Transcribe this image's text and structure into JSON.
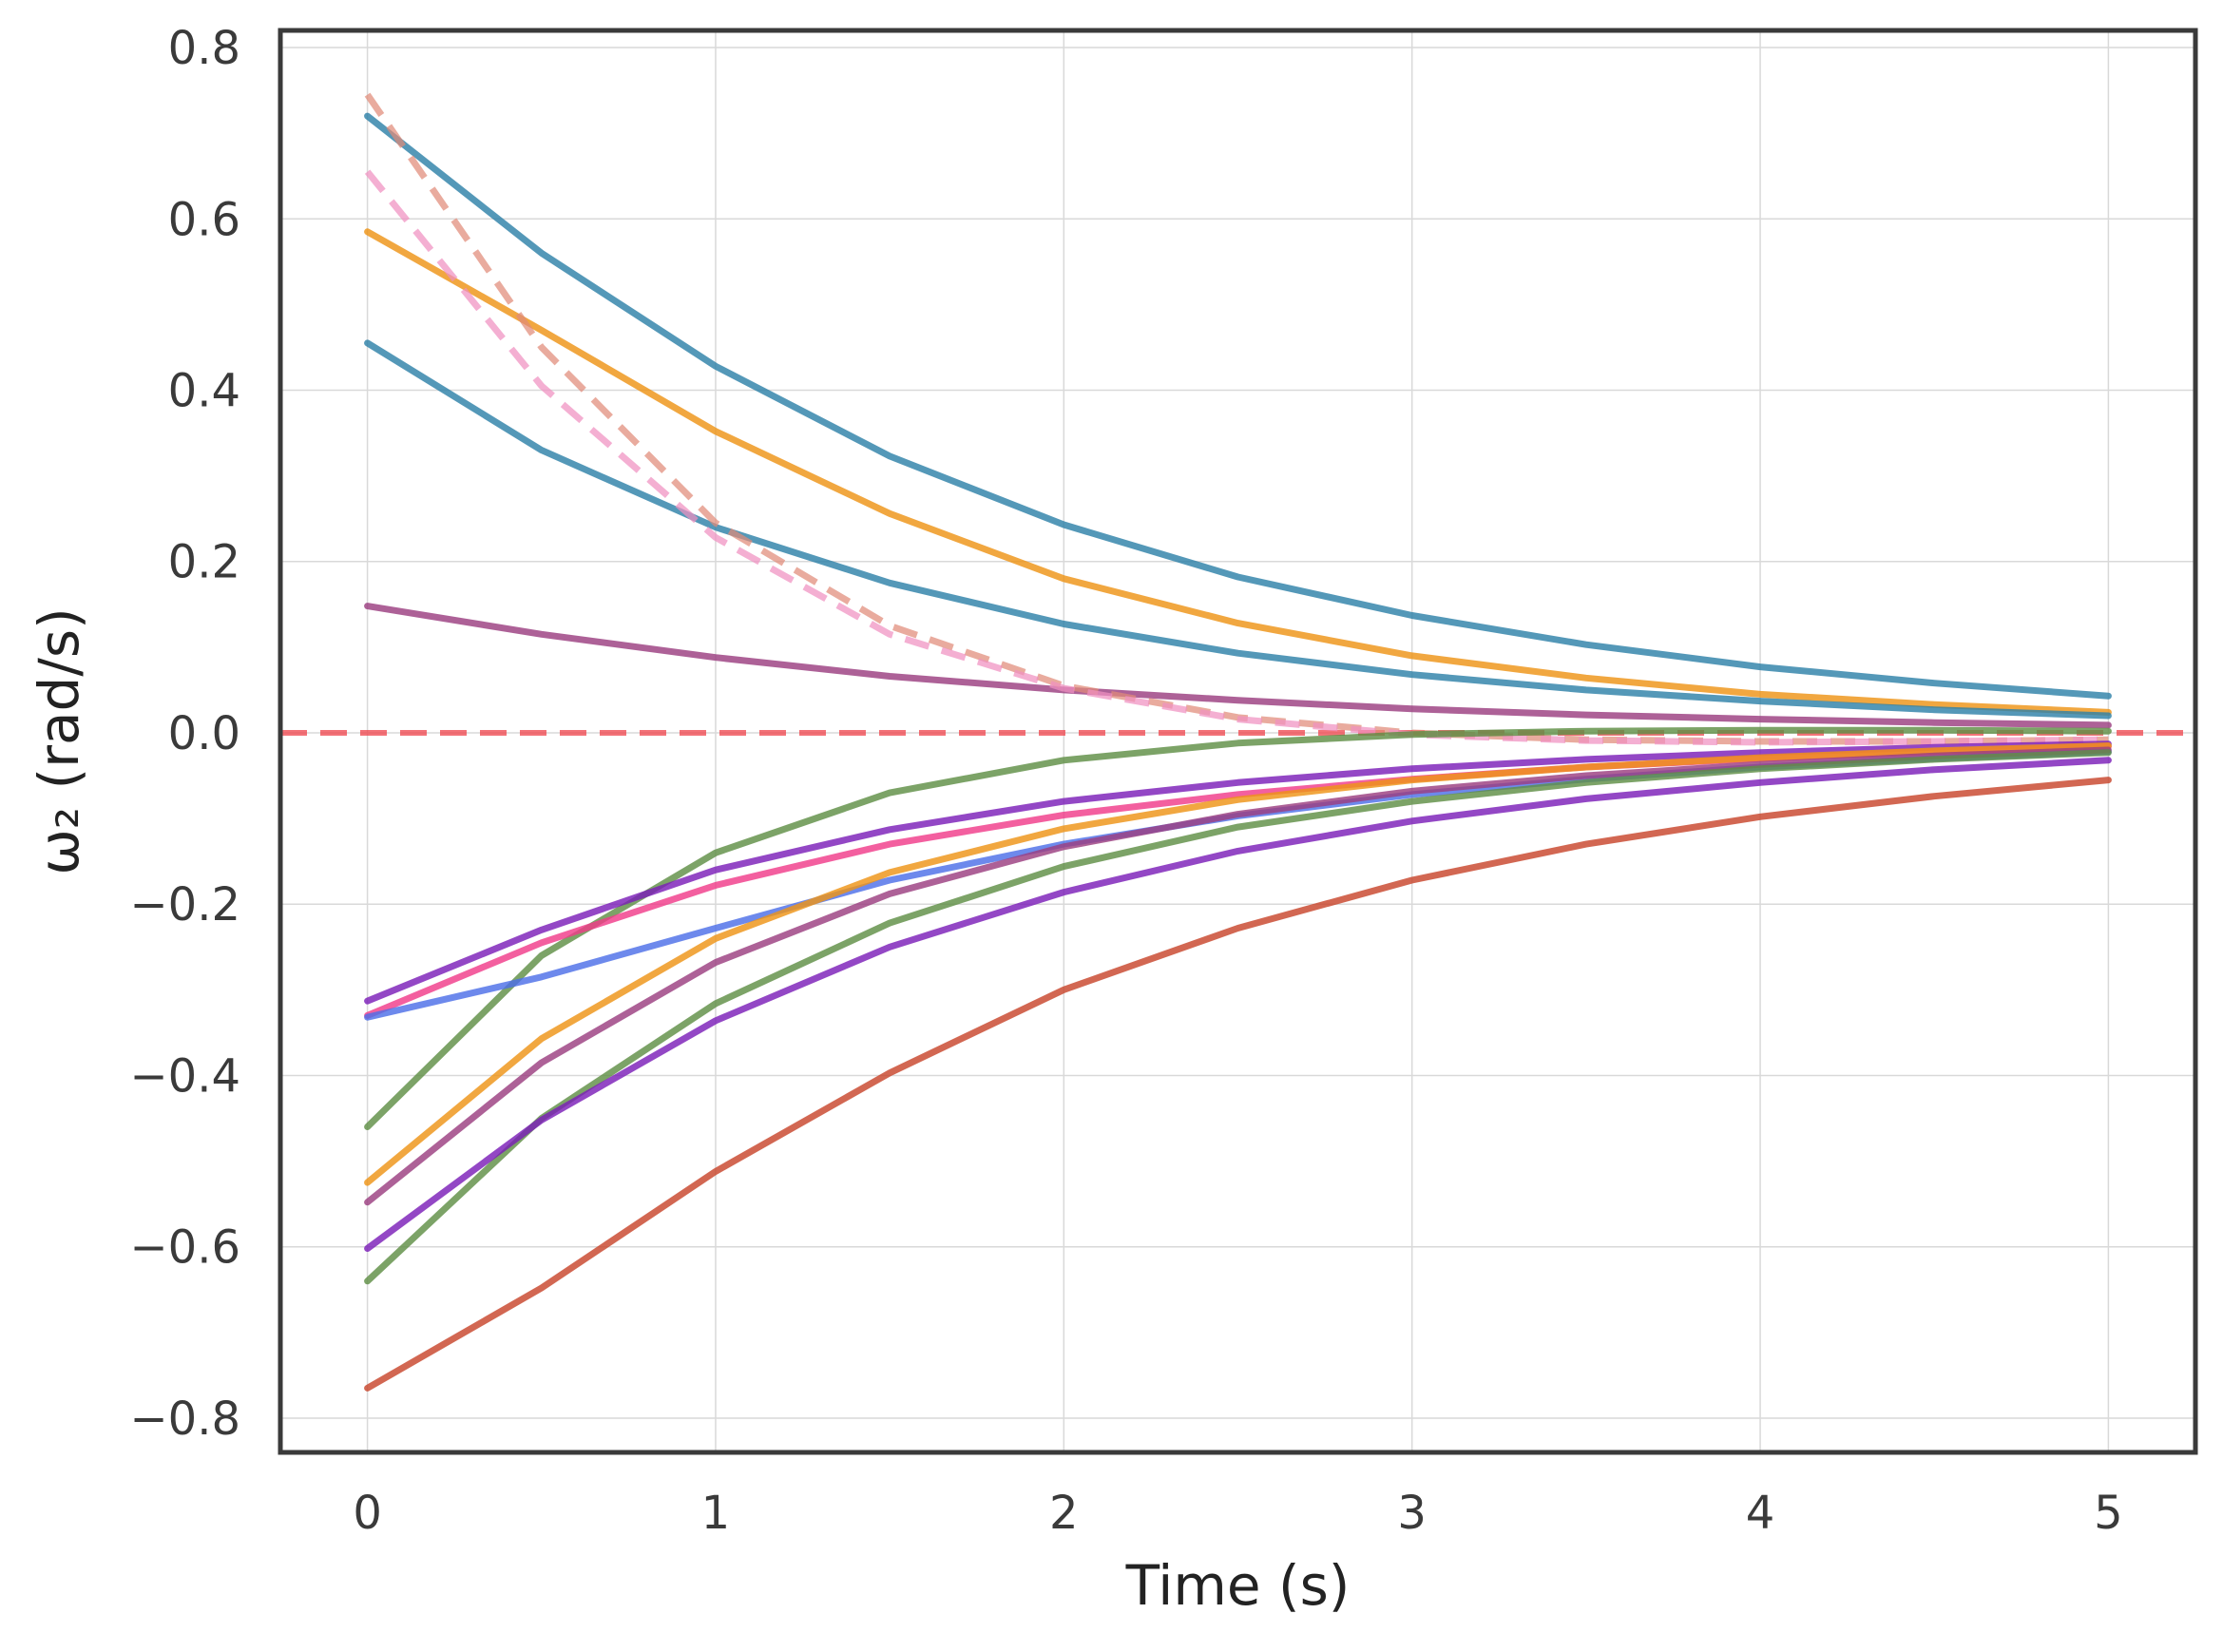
{
  "chart_data": {
    "type": "line",
    "title": "",
    "xlabel": "Time (s)",
    "ylabel": "ω₂ (rad/s)",
    "xlim": [
      -0.25,
      5.25
    ],
    "ylim": [
      -0.84,
      0.82
    ],
    "xticks": [
      0,
      1,
      2,
      3,
      4,
      5
    ],
    "xtick_labels": [
      "0",
      "1",
      "2",
      "3",
      "4",
      "5"
    ],
    "yticks": [
      0.8,
      0.6,
      0.4,
      0.2,
      0.0,
      -0.2,
      -0.4,
      -0.6,
      -0.8
    ],
    "ytick_labels": [
      "0.8",
      "0.6",
      "0.4",
      "0.2",
      "0.0",
      "−0.2",
      "−0.4",
      "−0.6",
      "−0.8"
    ],
    "grid": true,
    "x": [
      0,
      0.5,
      1,
      1.5,
      2,
      2.5,
      3,
      3.5,
      4,
      4.5,
      5
    ],
    "reference_line": {
      "y": 0.0,
      "color": "#f0434b",
      "style": "dashed"
    },
    "series": [
      {
        "color": "#2e81a8",
        "style": "solid",
        "values": [
          0.72,
          0.56,
          0.428,
          0.323,
          0.243,
          0.182,
          0.137,
          0.103,
          0.077,
          0.058,
          0.043
        ]
      },
      {
        "color": "#ee9416",
        "style": "solid",
        "values": [
          0.585,
          0.47,
          0.352,
          0.256,
          0.18,
          0.128,
          0.09,
          0.064,
          0.045,
          0.033,
          0.024
        ]
      },
      {
        "color": "#2e81a8",
        "style": "solid",
        "values": [
          0.455,
          0.33,
          0.24,
          0.175,
          0.127,
          0.093,
          0.068,
          0.05,
          0.037,
          0.027,
          0.02
        ]
      },
      {
        "color": "#9b3e80",
        "style": "solid",
        "values": [
          0.148,
          0.115,
          0.088,
          0.066,
          0.05,
          0.038,
          0.028,
          0.021,
          0.016,
          0.012,
          0.009
        ]
      },
      {
        "color": "#e08a78",
        "style": "dashed",
        "values": [
          0.745,
          0.45,
          0.245,
          0.125,
          0.055,
          0.018,
          0.0,
          -0.008,
          -0.01,
          -0.01,
          -0.008
        ]
      },
      {
        "color": "#f090c0",
        "style": "dashed",
        "values": [
          0.655,
          0.405,
          0.228,
          0.115,
          0.052,
          0.016,
          -0.002,
          -0.009,
          -0.011,
          -0.01,
          -0.008
        ]
      },
      {
        "color": "#5f8f45",
        "style": "solid",
        "values": [
          -0.46,
          -0.26,
          -0.14,
          -0.07,
          -0.032,
          -0.012,
          -0.002,
          0.002,
          0.003,
          0.003,
          0.002
        ]
      },
      {
        "color": "#7b1fb8",
        "style": "solid",
        "values": [
          -0.313,
          -0.23,
          -0.16,
          -0.113,
          -0.08,
          -0.058,
          -0.042,
          -0.031,
          -0.023,
          -0.017,
          -0.013
        ]
      },
      {
        "color": "#f03c8a",
        "style": "solid",
        "values": [
          -0.33,
          -0.245,
          -0.178,
          -0.13,
          -0.096,
          -0.072,
          -0.054,
          -0.04,
          -0.03,
          -0.022,
          -0.016
        ]
      },
      {
        "color": "#4d6fe8",
        "style": "solid",
        "values": [
          -0.332,
          -0.285,
          -0.228,
          -0.172,
          -0.13,
          -0.097,
          -0.072,
          -0.054,
          -0.04,
          -0.03,
          -0.022
        ]
      },
      {
        "color": "#ee9416",
        "style": "solid",
        "values": [
          -0.525,
          -0.357,
          -0.24,
          -0.163,
          -0.112,
          -0.078,
          -0.055,
          -0.04,
          -0.029,
          -0.021,
          -0.015
        ]
      },
      {
        "color": "#9b3e80",
        "style": "solid",
        "values": [
          -0.548,
          -0.385,
          -0.268,
          -0.188,
          -0.133,
          -0.095,
          -0.068,
          -0.05,
          -0.037,
          -0.027,
          -0.02
        ]
      },
      {
        "color": "#5f8f45",
        "style": "solid",
        "values": [
          -0.64,
          -0.45,
          -0.316,
          -0.222,
          -0.156,
          -0.11,
          -0.08,
          -0.058,
          -0.042,
          -0.031,
          -0.023
        ]
      },
      {
        "color": "#7b1fb8",
        "style": "solid",
        "values": [
          -0.602,
          -0.452,
          -0.336,
          -0.25,
          -0.186,
          -0.138,
          -0.103,
          -0.077,
          -0.058,
          -0.043,
          -0.032
        ]
      },
      {
        "color": "#c8452c",
        "style": "solid",
        "values": [
          -0.765,
          -0.648,
          -0.512,
          -0.397,
          -0.3,
          -0.228,
          -0.172,
          -0.13,
          -0.098,
          -0.074,
          -0.055
        ]
      }
    ]
  }
}
